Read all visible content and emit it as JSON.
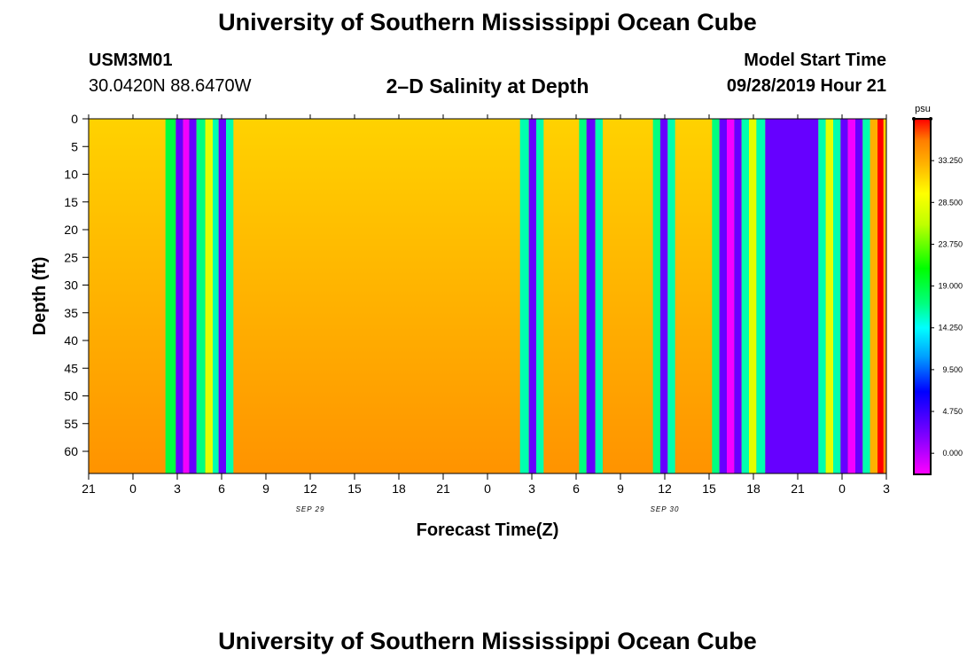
{
  "header": {
    "title": "University of Southern Mississippi Ocean Cube",
    "station_id": "USM3M01",
    "coordinates": "30.0420N 88.6470W",
    "subtitle": "2–D Salinity at Depth",
    "model_start_label": "Model Start Time",
    "model_start_value": "09/28/2019 Hour 21"
  },
  "footer": {
    "title": "University of Southern Mississippi Ocean Cube"
  },
  "chart_data": {
    "type": "heatmap",
    "title": "2–D Salinity at Depth",
    "xlabel": "Forecast Time(Z)",
    "ylabel": "Depth (ft)",
    "x_unit": "hours since 09/28/2019 21Z",
    "xlim": [
      0,
      54
    ],
    "ylim": [
      0,
      64
    ],
    "x_ticks": [
      {
        "h": 0,
        "label": "21"
      },
      {
        "h": 3,
        "label": "0"
      },
      {
        "h": 6,
        "label": "3"
      },
      {
        "h": 9,
        "label": "6"
      },
      {
        "h": 12,
        "label": "9"
      },
      {
        "h": 15,
        "label": "12"
      },
      {
        "h": 18,
        "label": "15"
      },
      {
        "h": 21,
        "label": "18"
      },
      {
        "h": 24,
        "label": "21"
      },
      {
        "h": 27,
        "label": "0"
      },
      {
        "h": 30,
        "label": "3"
      },
      {
        "h": 33,
        "label": "6"
      },
      {
        "h": 36,
        "label": "9"
      },
      {
        "h": 39,
        "label": "12"
      },
      {
        "h": 42,
        "label": "15"
      },
      {
        "h": 45,
        "label": "18"
      },
      {
        "h": 48,
        "label": "21"
      },
      {
        "h": 51,
        "label": "0"
      },
      {
        "h": 54,
        "label": "3"
      }
    ],
    "date_labels": [
      {
        "h": 15,
        "label": "SEP 29"
      },
      {
        "h": 39,
        "label": "SEP 30"
      }
    ],
    "y_ticks": [
      0,
      5,
      10,
      15,
      20,
      25,
      30,
      35,
      40,
      45,
      50,
      55,
      60
    ],
    "background_field": {
      "description_values": "salinity ~31 psu near surface grading to ~34 psu at depth",
      "surface_psu": 31.5,
      "bottom_psu": 34.5
    },
    "bands": [
      {
        "start": 5.2,
        "end": 5.9,
        "psu": 19.0
      },
      {
        "start": 5.9,
        "end": 6.4,
        "psu": 3.0
      },
      {
        "start": 6.4,
        "end": 6.8,
        "psu": -2.0
      },
      {
        "start": 6.8,
        "end": 7.3,
        "psu": 3.0
      },
      {
        "start": 7.3,
        "end": 7.9,
        "psu": 17.0
      },
      {
        "start": 7.9,
        "end": 8.4,
        "psu": 28.0
      },
      {
        "start": 8.4,
        "end": 8.8,
        "psu": 16.0
      },
      {
        "start": 8.8,
        "end": 9.3,
        "psu": 3.0
      },
      {
        "start": 9.3,
        "end": 9.8,
        "psu": 16.0
      },
      {
        "start": 29.2,
        "end": 29.8,
        "psu": 16.0
      },
      {
        "start": 29.8,
        "end": 30.3,
        "psu": 3.0
      },
      {
        "start": 30.3,
        "end": 30.8,
        "psu": 16.0
      },
      {
        "start": 33.2,
        "end": 33.7,
        "psu": 17.0
      },
      {
        "start": 33.7,
        "end": 34.3,
        "psu": 3.0
      },
      {
        "start": 34.3,
        "end": 34.8,
        "psu": 16.0
      },
      {
        "start": 38.2,
        "end": 38.7,
        "psu": 17.0
      },
      {
        "start": 38.7,
        "end": 39.2,
        "psu": 3.0
      },
      {
        "start": 39.2,
        "end": 39.7,
        "psu": 16.0
      },
      {
        "start": 42.2,
        "end": 42.7,
        "psu": 17.0
      },
      {
        "start": 42.7,
        "end": 43.2,
        "psu": 3.0
      },
      {
        "start": 43.2,
        "end": 43.7,
        "psu": -2.0
      },
      {
        "start": 43.7,
        "end": 44.2,
        "psu": 3.0
      },
      {
        "start": 44.2,
        "end": 44.7,
        "psu": 16.0
      },
      {
        "start": 44.7,
        "end": 45.2,
        "psu": 28.0
      },
      {
        "start": 45.2,
        "end": 45.8,
        "psu": 16.0
      },
      {
        "start": 45.8,
        "end": 49.4,
        "psu": 3.0
      },
      {
        "start": 49.4,
        "end": 49.9,
        "psu": 16.0
      },
      {
        "start": 49.9,
        "end": 50.4,
        "psu": 28.0
      },
      {
        "start": 50.4,
        "end": 50.9,
        "psu": 16.0
      },
      {
        "start": 50.9,
        "end": 51.4,
        "psu": 3.0
      },
      {
        "start": 51.4,
        "end": 51.9,
        "psu": -2.0
      },
      {
        "start": 51.9,
        "end": 52.4,
        "psu": 3.0
      },
      {
        "start": 52.4,
        "end": 52.9,
        "psu": 16.0
      },
      {
        "start": 52.9,
        "end": 53.4,
        "psu": 33.0
      },
      {
        "start": 53.4,
        "end": 53.8,
        "psu": 38.0
      }
    ],
    "colorbar": {
      "unit": "psu",
      "range": [
        -2.4,
        38.0
      ],
      "ticks": [
        "33.250",
        "28.500",
        "23.750",
        "19.000",
        "14.250",
        "9.500",
        "4.750",
        "0.000"
      ],
      "tick_values": [
        33.25,
        28.5,
        23.75,
        19.0,
        14.25,
        9.5,
        4.75,
        0.0
      ],
      "stops": [
        {
          "psu": -2.4,
          "color": "#ff00ff"
        },
        {
          "psu": 2.0,
          "color": "#7f00ff"
        },
        {
          "psu": 7.0,
          "color": "#0000ff"
        },
        {
          "psu": 11.0,
          "color": "#00a0ff"
        },
        {
          "psu": 14.25,
          "color": "#00ffff"
        },
        {
          "psu": 17.0,
          "color": "#00ff7f"
        },
        {
          "psu": 21.0,
          "color": "#00ff00"
        },
        {
          "psu": 26.0,
          "color": "#bfff00"
        },
        {
          "psu": 29.5,
          "color": "#ffff00"
        },
        {
          "psu": 33.0,
          "color": "#ffb000"
        },
        {
          "psu": 35.5,
          "color": "#ff7f00"
        },
        {
          "psu": 38.0,
          "color": "#ff0000"
        }
      ]
    }
  }
}
